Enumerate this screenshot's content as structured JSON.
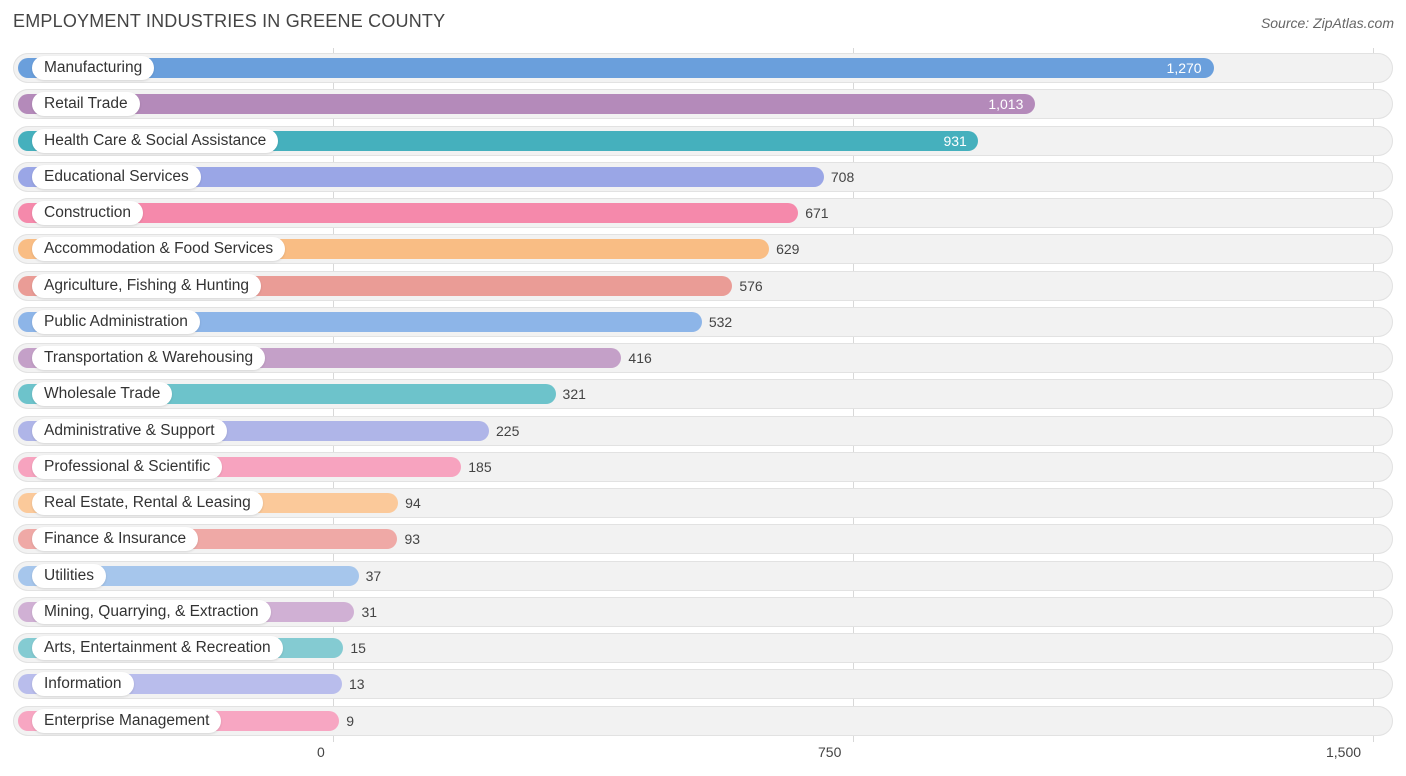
{
  "header": {
    "title": "EMPLOYMENT INDUSTRIES IN GREENE COUNTY",
    "source": "Source: ZipAtlas.com"
  },
  "chart_data": {
    "type": "bar",
    "orientation": "horizontal",
    "title": "EMPLOYMENT INDUSTRIES IN GREENE COUNTY",
    "xlim": [
      0,
      1500
    ],
    "x_ticks": [
      0,
      750,
      1500
    ],
    "x_tick_labels": [
      "0",
      "750",
      "1,500"
    ],
    "grid": true,
    "categories": [
      "Manufacturing",
      "Retail Trade",
      "Health Care & Social Assistance",
      "Educational Services",
      "Construction",
      "Accommodation & Food Services",
      "Agriculture, Fishing & Hunting",
      "Public Administration",
      "Transportation & Warehousing",
      "Wholesale Trade",
      "Administrative & Support",
      "Professional & Scientific",
      "Real Estate, Rental & Leasing",
      "Finance & Insurance",
      "Utilities",
      "Mining, Quarrying, & Extraction",
      "Arts, Entertainment & Recreation",
      "Information",
      "Enterprise Management"
    ],
    "values": [
      1270,
      1013,
      931,
      708,
      671,
      629,
      576,
      532,
      416,
      321,
      225,
      185,
      94,
      93,
      37,
      31,
      15,
      13,
      9
    ],
    "value_labels": [
      "1,270",
      "1,013",
      "931",
      "708",
      "671",
      "629",
      "576",
      "532",
      "416",
      "321",
      "225",
      "185",
      "94",
      "93",
      "37",
      "31",
      "15",
      "13",
      "9"
    ],
    "colors": [
      "#6a9fdc",
      "#b48aba",
      "#45b0bd",
      "#9aa6e6",
      "#f589ab",
      "#f9bd84",
      "#ea9c96",
      "#8db5e8",
      "#c4a0c8",
      "#6dc3cb",
      "#afb5e8",
      "#f7a3bf",
      "#fbc99a",
      "#efa9a6",
      "#a6c6ec",
      "#d0b0d4",
      "#84cbd2",
      "#b9bdec",
      "#f7a6c2"
    ]
  }
}
